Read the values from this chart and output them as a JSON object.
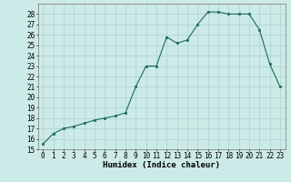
{
  "x": [
    0,
    1,
    2,
    3,
    4,
    5,
    6,
    7,
    8,
    9,
    10,
    11,
    12,
    13,
    14,
    15,
    16,
    17,
    18,
    19,
    20,
    21,
    22,
    23
  ],
  "y": [
    15.5,
    16.5,
    17.0,
    17.2,
    17.5,
    17.8,
    18.0,
    18.2,
    18.5,
    21.0,
    23.0,
    23.0,
    25.8,
    25.2,
    25.5,
    27.0,
    28.2,
    28.2,
    28.0,
    28.0,
    28.0,
    26.5,
    23.2,
    21.0
  ],
  "line_color": "#1a6b5a",
  "marker_color": "#1a6b5a",
  "bg_color": "#cceae7",
  "grid_color": "#aad4d0",
  "xlabel": "Humidex (Indice chaleur)",
  "ylim": [
    15,
    29
  ],
  "xlim": [
    -0.5,
    23.5
  ],
  "yticks": [
    15,
    16,
    17,
    18,
    19,
    20,
    21,
    22,
    23,
    24,
    25,
    26,
    27,
    28
  ],
  "xticks": [
    0,
    1,
    2,
    3,
    4,
    5,
    6,
    7,
    8,
    9,
    10,
    11,
    12,
    13,
    14,
    15,
    16,
    17,
    18,
    19,
    20,
    21,
    22,
    23
  ],
  "tick_fontsize": 5.5,
  "xlabel_fontsize": 6.5,
  "marker_size": 2.0,
  "linewidth": 0.8
}
